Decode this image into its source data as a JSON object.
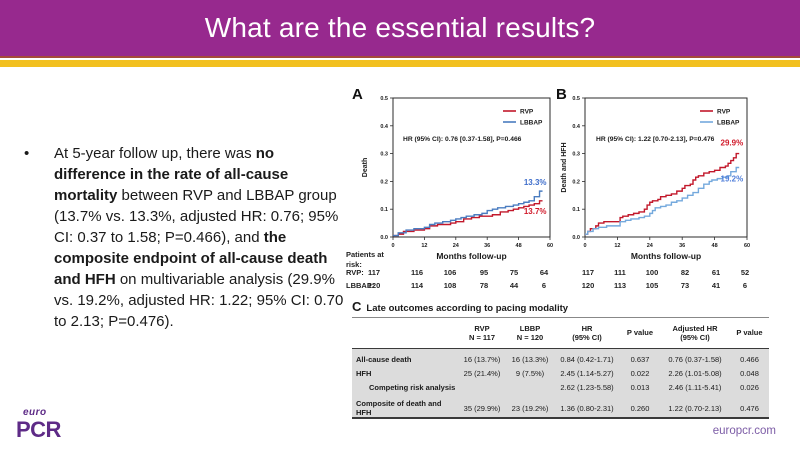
{
  "header": {
    "title": "What are the essential results?"
  },
  "bullet": {
    "marker": "•",
    "segments": [
      {
        "text": "At 5-year follow up, there was ",
        "bold": false
      },
      {
        "text": "no difference in the rate of all-cause mortality",
        "bold": true
      },
      {
        "text": " between RVP and LBBAP group (13.7% vs. 13.3%, adjusted HR: 0.76; 95% CI: 0.37 to 1.58; P=0.466), and ",
        "bold": false
      },
      {
        "text": "the composite endpoint of all-cause death and HFH",
        "bold": true
      },
      {
        "text": " on multivariable analysis (29.9% vs. 19.2%, adjusted HR: 1.22; 95% CI: 0.70 to 2.13; P=0.476).",
        "bold": false
      }
    ]
  },
  "figure": {
    "panel_a_label": "A",
    "panel_b_label": "B",
    "patients_at_risk": {
      "label_line1": "Patients at",
      "label_line2": "risk:",
      "rows": [
        {
          "label": "RVP:",
          "chart_a": [
            117,
            116,
            106,
            95,
            75,
            64
          ],
          "chart_b": [
            117,
            111,
            100,
            82,
            61,
            52
          ]
        },
        {
          "label": "LBBAP:",
          "chart_a": [
            120,
            114,
            108,
            78,
            44,
            6
          ],
          "chart_b": [
            120,
            113,
            105,
            73,
            41,
            6
          ]
        }
      ]
    }
  },
  "chart_data": [
    {
      "type": "line",
      "panel": "A",
      "ylabel": "Death",
      "xlabel": "Months follow-up",
      "ylim": [
        0,
        0.5
      ],
      "xlim": [
        0,
        60
      ],
      "yticks": [
        "0.0",
        "0.1",
        "0.2",
        "0.3",
        "0.4",
        "0.5"
      ],
      "xticks": [
        0,
        12,
        24,
        36,
        48,
        60
      ],
      "grid": false,
      "legend_position": "top-right",
      "annotation": "HR (95% CI): 0.76 [0.37-1.58], P=0.466",
      "series": [
        {
          "name": "RVP",
          "color": "#c2182b",
          "end_label": "13.7%",
          "end_label_color": "#d11a2a",
          "points": [
            [
              0,
              0.005
            ],
            [
              2,
              0.01
            ],
            [
              4,
              0.02
            ],
            [
              8,
              0.025
            ],
            [
              12,
              0.03
            ],
            [
              14,
              0.04
            ],
            [
              17,
              0.045
            ],
            [
              22,
              0.05
            ],
            [
              24,
              0.055
            ],
            [
              27,
              0.065
            ],
            [
              30,
              0.07
            ],
            [
              33,
              0.075
            ],
            [
              38,
              0.08
            ],
            [
              41,
              0.09
            ],
            [
              44,
              0.095
            ],
            [
              46,
              0.1
            ],
            [
              48,
              0.105
            ],
            [
              50,
              0.11
            ],
            [
              52,
              0.115
            ],
            [
              54,
              0.12
            ],
            [
              56,
              0.13
            ]
          ]
        },
        {
          "name": "LBBAP",
          "color": "#4a7cc0",
          "end_label": "13.3%",
          "end_label_color": "#3f6ecb",
          "points": [
            [
              0,
              0.005
            ],
            [
              2,
              0.015
            ],
            [
              5,
              0.025
            ],
            [
              8,
              0.03
            ],
            [
              12,
              0.035
            ],
            [
              14,
              0.045
            ],
            [
              16,
              0.05
            ],
            [
              19,
              0.055
            ],
            [
              22,
              0.06
            ],
            [
              24,
              0.065
            ],
            [
              26,
              0.07
            ],
            [
              28,
              0.075
            ],
            [
              31,
              0.08
            ],
            [
              34,
              0.085
            ],
            [
              36,
              0.095
            ],
            [
              38,
              0.1
            ],
            [
              40,
              0.105
            ],
            [
              43,
              0.11
            ],
            [
              46,
              0.115
            ],
            [
              48,
              0.12
            ],
            [
              50,
              0.125
            ],
            [
              52,
              0.13
            ],
            [
              54,
              0.145
            ],
            [
              56,
              0.165
            ]
          ]
        }
      ]
    },
    {
      "type": "line",
      "panel": "B",
      "ylabel": "Death and HFH",
      "xlabel": "Months follow-up",
      "ylim": [
        0,
        0.5
      ],
      "xlim": [
        0,
        60
      ],
      "yticks": [
        "0.0",
        "0.1",
        "0.2",
        "0.3",
        "0.4",
        "0.5"
      ],
      "xticks": [
        0,
        12,
        24,
        36,
        48,
        60
      ],
      "grid": false,
      "legend_position": "top-right",
      "annotation": "HR (95% CI): 1.22 [0.70-2.13], P=0.476",
      "series": [
        {
          "name": "RVP",
          "color": "#c2182b",
          "end_label": "29.9%",
          "end_label_color": "#d11a2a",
          "points": [
            [
              0,
              0.01
            ],
            [
              1,
              0.02
            ],
            [
              2,
              0.03
            ],
            [
              4,
              0.04
            ],
            [
              5,
              0.05
            ],
            [
              7,
              0.055
            ],
            [
              13,
              0.07
            ],
            [
              14,
              0.075
            ],
            [
              16,
              0.08
            ],
            [
              18,
              0.085
            ],
            [
              20,
              0.09
            ],
            [
              22,
              0.1
            ],
            [
              23,
              0.115
            ],
            [
              24,
              0.125
            ],
            [
              25,
              0.13
            ],
            [
              27,
              0.135
            ],
            [
              28,
              0.145
            ],
            [
              30,
              0.15
            ],
            [
              32,
              0.155
            ],
            [
              34,
              0.165
            ],
            [
              36,
              0.175
            ],
            [
              37,
              0.185
            ],
            [
              39,
              0.19
            ],
            [
              40,
              0.205
            ],
            [
              41,
              0.215
            ],
            [
              42,
              0.22
            ],
            [
              44,
              0.23
            ],
            [
              46,
              0.235
            ],
            [
              48,
              0.24
            ],
            [
              50,
              0.25
            ],
            [
              52,
              0.255
            ],
            [
              53,
              0.265
            ],
            [
              54,
              0.275
            ],
            [
              55,
              0.285
            ],
            [
              56,
              0.3
            ]
          ]
        },
        {
          "name": "LBBAP",
          "color": "#74a9dd",
          "end_label": "19.2%",
          "end_label_color": "#4f7ed9",
          "points": [
            [
              0,
              0.01
            ],
            [
              1,
              0.02
            ],
            [
              3,
              0.03
            ],
            [
              5,
              0.035
            ],
            [
              8,
              0.04
            ],
            [
              13,
              0.055
            ],
            [
              15,
              0.06
            ],
            [
              17,
              0.065
            ],
            [
              20,
              0.07
            ],
            [
              22,
              0.075
            ],
            [
              24,
              0.085
            ],
            [
              25,
              0.095
            ],
            [
              26,
              0.105
            ],
            [
              28,
              0.11
            ],
            [
              30,
              0.115
            ],
            [
              32,
              0.125
            ],
            [
              34,
              0.13
            ],
            [
              36,
              0.14
            ],
            [
              38,
              0.15
            ],
            [
              40,
              0.16
            ],
            [
              42,
              0.175
            ],
            [
              44,
              0.19
            ],
            [
              46,
              0.2
            ],
            [
              47,
              0.205
            ],
            [
              49,
              0.21
            ],
            [
              51,
              0.215
            ],
            [
              53,
              0.22
            ],
            [
              54,
              0.235
            ],
            [
              56,
              0.25
            ]
          ]
        }
      ]
    }
  ],
  "table": {
    "panel_label": "C",
    "title": "Late outcomes according to pacing modality",
    "header": [
      {
        "line1": "",
        "line2": ""
      },
      {
        "line1": "RVP",
        "line2": "N = 117"
      },
      {
        "line1": "LBBP",
        "line2": "N = 120"
      },
      {
        "line1": "HR",
        "line2": "(95% CI)"
      },
      {
        "line1": "P value",
        "line2": ""
      },
      {
        "line1": "Adjusted HR",
        "line2": "(95% CI)"
      },
      {
        "line1": "P value",
        "line2": ""
      }
    ],
    "rows": [
      {
        "label": "All-cause death",
        "indent": false,
        "gap": false,
        "values": [
          "16 (13.7%)",
          "16 (13.3%)",
          "0.84 (0.42-1.71)",
          "0.637",
          "0.76 (0.37-1.58)",
          "0.466"
        ]
      },
      {
        "label": "HFH",
        "indent": false,
        "gap": false,
        "values": [
          "25 (21.4%)",
          "9 (7.5%)",
          "2.45 (1.14-5.27)",
          "0.022",
          "2.26 (1.01-5.08)",
          "0.048"
        ]
      },
      {
        "label": "Competing risk analysis",
        "indent": true,
        "gap": false,
        "values": [
          "",
          "",
          "2.62 (1.23-5.58)",
          "0.013",
          "2.46 (1.11-5.41)",
          "0.026"
        ]
      },
      {
        "label": "Composite of death and HFH",
        "indent": false,
        "gap": true,
        "values": [
          "35 (29.9%)",
          "23 (19.2%)",
          "1.36 (0.80-2.31)",
          "0.260",
          "1.22 (0.70-2.13)",
          "0.476"
        ]
      }
    ]
  },
  "footer": {
    "logo_euro": "euro",
    "logo_pcr": "PCR",
    "link": "europcr.com"
  },
  "colors": {
    "header_purple": "#97298e",
    "accent_yellow": "#f2c01f",
    "rvp_red": "#c2182b",
    "lbbap_blue_a": "#4a7cc0",
    "lbbap_blue_b": "#74a9dd",
    "table_gray": "#dcdcdc",
    "logo_purple": "#5e2b87",
    "link_purple": "#7c5ca6"
  }
}
